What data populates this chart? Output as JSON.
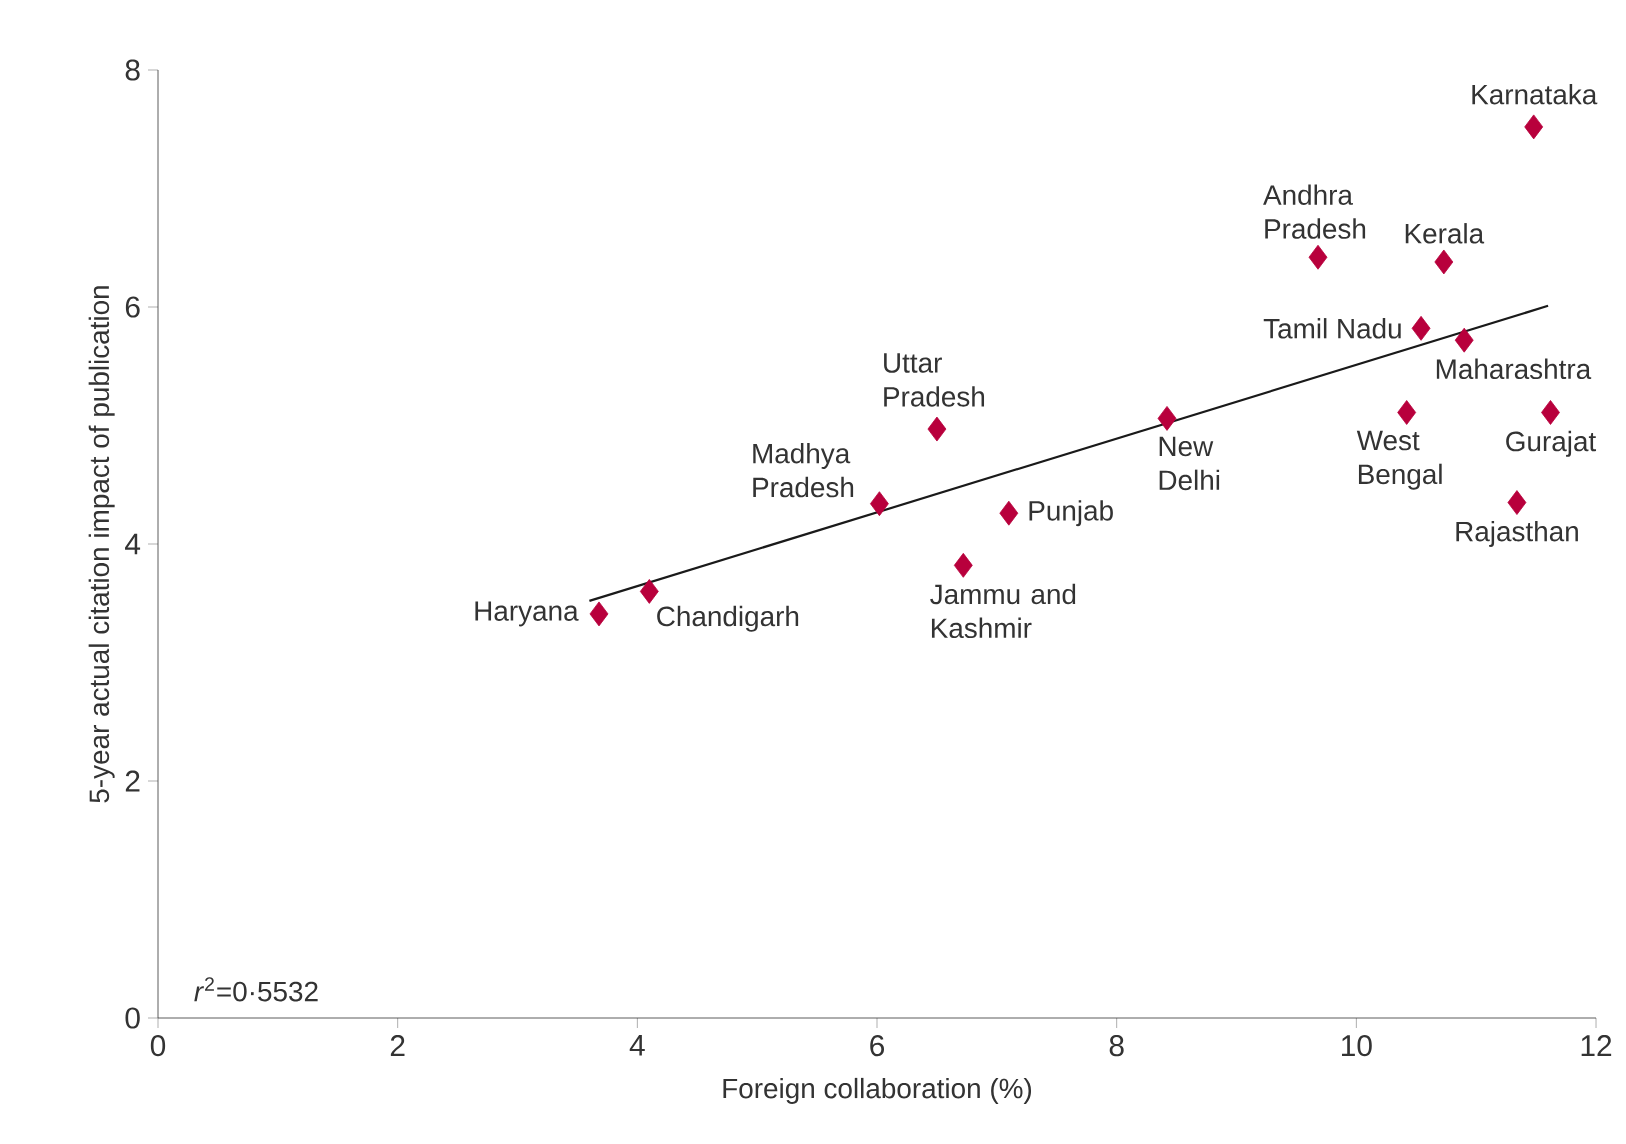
{
  "chart_data": {
    "type": "scatter",
    "xlabel": "Foreign collaboration (%)",
    "ylabel": "5-year actual citation impact of publication",
    "xlim": [
      0,
      12
    ],
    "ylim": [
      0,
      8
    ],
    "xticks": [
      0,
      2,
      4,
      6,
      8,
      10,
      12
    ],
    "yticks": [
      0,
      2,
      4,
      6,
      8
    ],
    "grid": false,
    "series": [
      {
        "color": "#b8003c",
        "marker": "diamond",
        "x": [
          3.68,
          4.1,
          6.02,
          6.5,
          7.1,
          6.72,
          8.42,
          9.68,
          10.73,
          11.48,
          10.54,
          10.9,
          10.42,
          11.62,
          11.34
        ],
        "values": [
          3.41,
          3.6,
          4.34,
          4.97,
          4.26,
          3.82,
          5.06,
          6.42,
          6.38,
          7.52,
          5.82,
          5.72,
          5.11,
          5.11,
          4.35
        ]
      },
      {
        "type": "line",
        "color": "#1a1a1a",
        "marker": "none",
        "line_style": "solid",
        "x": [
          3.6,
          11.6
        ],
        "values": [
          3.52,
          6.01
        ]
      }
    ],
    "annotations": [
      {
        "text": "Haryana",
        "x": 3.68,
        "y": 3.41
      },
      {
        "text": "Chandigarh",
        "x": 4.1,
        "y": 3.6
      },
      {
        "text": "Madhya Pradesh",
        "x": 6.02,
        "y": 4.34
      },
      {
        "text": "Uttar Pradesh",
        "x": 6.5,
        "y": 4.97
      },
      {
        "text": "Punjab",
        "x": 7.1,
        "y": 4.26
      },
      {
        "text": "Jammu and Kashmir",
        "x": 6.72,
        "y": 3.82
      },
      {
        "text": "New Delhi",
        "x": 8.42,
        "y": 5.06
      },
      {
        "text": "Andhra Pradesh",
        "x": 9.68,
        "y": 6.42
      },
      {
        "text": "Kerala",
        "x": 10.73,
        "y": 6.38
      },
      {
        "text": "Karnataka",
        "x": 11.48,
        "y": 7.52
      },
      {
        "text": "Tamil Nadu",
        "x": 10.54,
        "y": 5.82
      },
      {
        "text": "Maharashtra",
        "x": 10.9,
        "y": 5.72
      },
      {
        "text": "West Bengal",
        "x": 10.42,
        "y": 5.11
      },
      {
        "text": "Gurajat",
        "x": 11.62,
        "y": 5.11
      },
      {
        "text": "Rajasthan",
        "x": 11.34,
        "y": 4.35
      },
      "*r*$^{2}$=0·5532"
    ]
  }
}
